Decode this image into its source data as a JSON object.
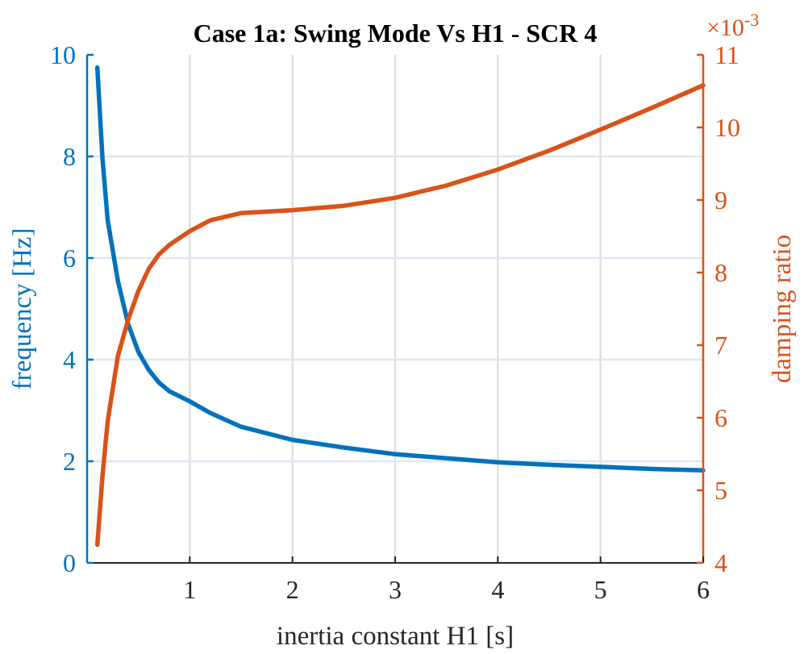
{
  "chart_data": {
    "type": "line",
    "title": "Case 1a: Swing Mode Vs H1 - SCR 4",
    "xlabel": "inertia constant H1 [s]",
    "xlim": [
      0,
      6
    ],
    "xticks": [
      1,
      2,
      3,
      4,
      5,
      6
    ],
    "grid": true,
    "y_left": {
      "label": "frequency [Hz]",
      "lim": [
        0,
        10
      ],
      "ticks": [
        0,
        2,
        4,
        6,
        8,
        10
      ],
      "color": "#0072BD"
    },
    "y_right": {
      "label": "damping ratio",
      "lim": [
        4,
        11
      ],
      "ticks": [
        4,
        5,
        6,
        7,
        8,
        9,
        10,
        11
      ],
      "exponent_prefix": "×10",
      "exponent_power": "-3",
      "color": "#D95319"
    },
    "series": [
      {
        "axis": "left",
        "color": "#0072BD",
        "x": [
          0.1,
          0.15,
          0.2,
          0.3,
          0.4,
          0.5,
          0.6,
          0.7,
          0.8,
          1.0,
          1.2,
          1.5,
          2.0,
          2.5,
          3.0,
          3.5,
          4.0,
          4.5,
          5.0,
          5.5,
          6.0
        ],
        "y": [
          9.75,
          7.95,
          6.75,
          5.55,
          4.7,
          4.15,
          3.8,
          3.55,
          3.38,
          3.18,
          2.95,
          2.68,
          2.42,
          2.27,
          2.14,
          2.06,
          1.98,
          1.93,
          1.89,
          1.85,
          1.82
        ]
      },
      {
        "axis": "right",
        "color": "#D95319",
        "x": [
          0.1,
          0.15,
          0.2,
          0.3,
          0.4,
          0.5,
          0.6,
          0.7,
          0.8,
          1.0,
          1.2,
          1.5,
          2.0,
          2.5,
          3.0,
          3.5,
          4.0,
          4.5,
          5.0,
          5.5,
          6.0
        ],
        "y": [
          4.25,
          5.2,
          5.95,
          6.85,
          7.35,
          7.75,
          8.05,
          8.25,
          8.38,
          8.57,
          8.72,
          8.82,
          8.86,
          8.92,
          9.03,
          9.2,
          9.42,
          9.68,
          9.97,
          10.27,
          10.58
        ]
      }
    ]
  }
}
